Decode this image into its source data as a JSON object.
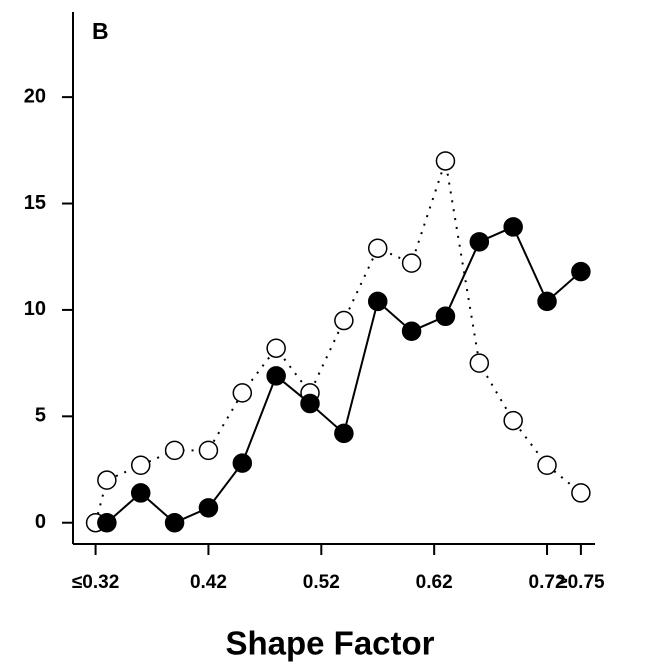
{
  "chart_data": {
    "type": "line",
    "annotation": "B",
    "xlabel": "Shape Factor",
    "xlim": [
      0.3,
      0.7625
    ],
    "ylim": [
      -1,
      24
    ],
    "xticks": [
      {
        "value": 0.32,
        "label": "≤0.32"
      },
      0.42,
      0.52,
      0.62,
      0.72,
      {
        "value": 0.75,
        "label": "≥0.75"
      }
    ],
    "yticks": [
      0,
      5,
      10,
      15,
      20
    ],
    "grid": false,
    "series": [
      {
        "x": [
          0.32,
          0.33,
          0.36,
          0.39,
          0.42,
          0.45,
          0.48,
          0.51,
          0.54,
          0.57,
          0.6,
          0.63,
          0.66,
          0.69,
          0.72,
          0.75
        ],
        "values": [
          0,
          2.0,
          2.7,
          3.4,
          3.4,
          6.1,
          8.2,
          6.1,
          9.5,
          12.9,
          12.2,
          17.0,
          7.5,
          4.8,
          2.7,
          1.4
        ],
        "color": "#ffffff",
        "line_style": "dotted"
      },
      {
        "x": [
          0.33,
          0.36,
          0.39,
          0.42,
          0.45,
          0.48,
          0.51,
          0.54,
          0.57,
          0.6,
          0.63,
          0.66,
          0.69,
          0.72,
          0.75
        ],
        "values": [
          0,
          1.4,
          0,
          0.7,
          2.8,
          6.9,
          5.6,
          4.2,
          10.4,
          9.0,
          9.7,
          13.2,
          13.9,
          10.4,
          11.8
        ],
        "color": "#000000",
        "line_style": "solid"
      }
    ]
  }
}
